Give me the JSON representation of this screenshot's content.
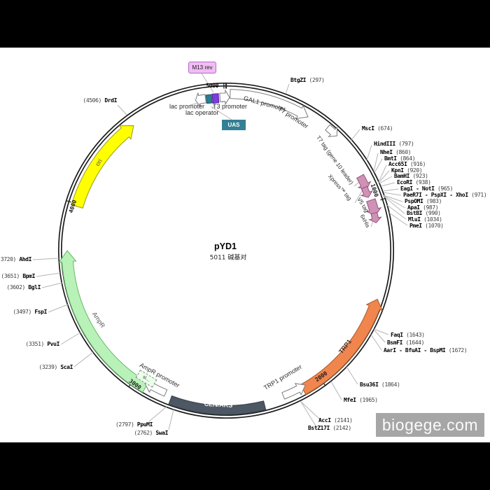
{
  "plasmid": {
    "name": "pYD1",
    "size": "5011 碱基对"
  },
  "watermark": "biogege.com",
  "badges": {
    "m13_rev": "M13 rev",
    "uas": "UAS"
  },
  "ticks": {
    "t1000": "1000",
    "t2000": "2000",
    "t3000": "3000",
    "t4000": "4000",
    "t5000": "5000"
  },
  "features": {
    "gal1_promoter": "GAL1 promoter",
    "t7_promoter": "T7 promoter",
    "t7_tag": "T7 tag (gene 10 leader)",
    "xpress_tag": "Xpress™ tag",
    "v5_tag": "V5 tag",
    "his6": "6xHis",
    "trp1": "TRP1",
    "trp1_promoter": "TRP1 promoter",
    "cen_ars": "CEN/ARS",
    "ampr": "AmpR",
    "ampr_promoter": "AmpR promoter",
    "signal": "si...",
    "ori": "ori",
    "lac_promoter": "lac promoter",
    "lac_operator": "lac operator",
    "t3_promoter": "T3 promoter"
  },
  "sites": [
    {
      "name": "MscI",
      "pos": "(674)"
    },
    {
      "name": "HindIII",
      "pos": "(797)"
    },
    {
      "name": "NheI",
      "pos": "(860)"
    },
    {
      "name": "BmtI",
      "pos": "(864)"
    },
    {
      "name": "Acc65I",
      "pos": "(916)"
    },
    {
      "name": "KpnI",
      "pos": "(920)"
    },
    {
      "name": "BamHI",
      "pos": "(923)"
    },
    {
      "name": "EcoRI",
      "pos": "(938)"
    },
    {
      "name": "EagI - NotI",
      "pos": "(965)"
    },
    {
      "name": "PaeR7I - PspXI - XhoI",
      "pos": "(971)"
    },
    {
      "name": "PspOMI",
      "pos": "(983)"
    },
    {
      "name": "ApaI",
      "pos": "(987)"
    },
    {
      "name": "BstBI",
      "pos": "(990)"
    },
    {
      "name": "MluI",
      "pos": "(1034)"
    },
    {
      "name": "PmeI",
      "pos": "(1070)"
    },
    {
      "name": "BtgZI",
      "pos": "(297)"
    },
    {
      "name": "FaqI",
      "pos": "(1643)"
    },
    {
      "name": "BsmFI",
      "pos": "(1644)"
    },
    {
      "name": "AarI - BfuAI - BspMI",
      "pos": "(1672)"
    },
    {
      "name": "Bsu36I",
      "pos": "(1864)"
    },
    {
      "name": "MfeI",
      "pos": "(1965)"
    },
    {
      "name": "AccI",
      "pos": "(2141)"
    },
    {
      "name": "BstZ17I",
      "pos": "(2142)"
    },
    {
      "name": "DrdI",
      "pos": "(4506)"
    },
    {
      "name": "AhdI",
      "pos": "(3720)"
    },
    {
      "name": "BpmI",
      "pos": "(3651)"
    },
    {
      "name": "BglI",
      "pos": "(3602)"
    },
    {
      "name": "FspI",
      "pos": "(3497)"
    },
    {
      "name": "PvuI",
      "pos": "(3351)"
    },
    {
      "name": "ScaI",
      "pos": "(3239)"
    },
    {
      "name": "PpuMI",
      "pos": "(2797)"
    },
    {
      "name": "SwaI",
      "pos": "(2762)"
    }
  ],
  "colors": {
    "ori": "#ffff00",
    "ori_stroke": "#999926",
    "ampr": "#b8f2b8",
    "ampr_stroke": "#69b869",
    "trp1": "#f0854e",
    "trp1_stroke": "#a85a28",
    "cen_ars": "#4d5864",
    "cen_ars_stroke": "#343d46",
    "tag_arrow": "#cf92b5",
    "tag_arrow_stroke": "#96527d",
    "white_feature": "#ffffff",
    "white_feature_stroke": "#7d7d7d",
    "uas_box": "#2a7e90",
    "uas_box_stroke": "#1c5968",
    "lac_operator_box": "#7e3bdd",
    "lac_operator_stroke": "#55259c",
    "ring": "#1c1c1c",
    "leader_line": "#b5b5b5",
    "watermark_bg": "#a6a6a6"
  }
}
